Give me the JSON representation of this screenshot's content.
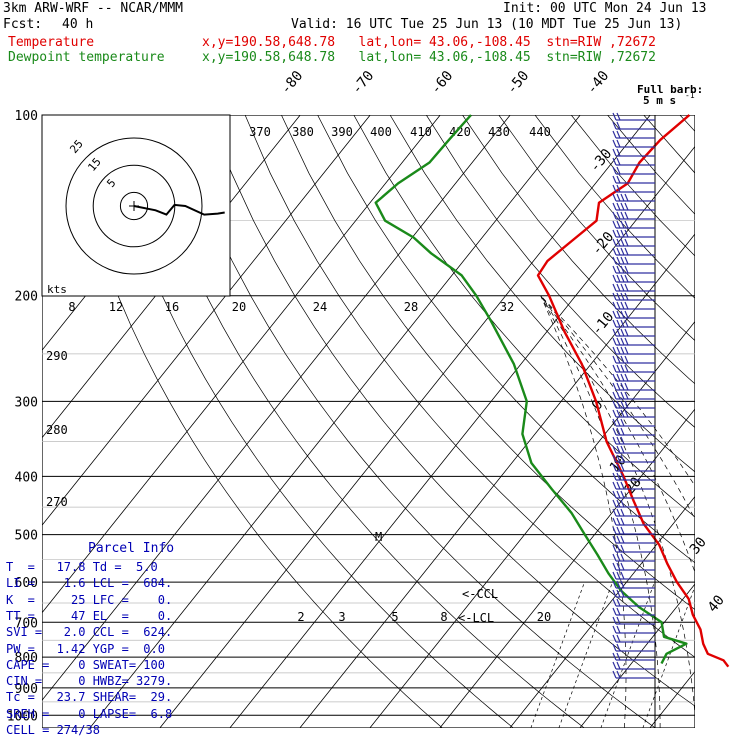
{
  "header": {
    "model": "3km ARW-WRF -- NCAR/MMM",
    "init": "Init: 00 UTC Mon 24 Jun 13",
    "fcst_label": "Fcst:",
    "fcst_value": "40 h",
    "valid": "Valid: 16 UTC Tue 25 Jun 13 (10 MDT Tue 25 Jun 13)",
    "temp_label": "Temperature",
    "temp_info": "x,y=190.58,648.78   lat,lon= 43.06,-108.45  stn=RIW ,72672",
    "dew_label": "Dewpoint temperature",
    "dew_info": "x,y=190.58,648.78   lat,lon= 43.06,-108.45  stn=RIW ,72672"
  },
  "colors": {
    "temperature": "#e00000",
    "dewpoint": "#1a8a1a",
    "text_blue": "#0000b4",
    "grid": "#000000"
  },
  "chart_data": {
    "type": "line",
    "title": "",
    "ylabel": "",
    "pressure_levels": [
      100,
      200,
      300,
      400,
      500,
      600,
      700,
      800,
      900,
      1000
    ],
    "isotherm_labels": [
      "-80",
      "-70",
      "-60",
      "-50",
      "-40",
      "-30",
      "-20",
      "-10",
      "0",
      "10",
      "20",
      "30",
      "40"
    ],
    "theta_labels_inset": [
      "370",
      "380",
      "390",
      "400",
      "410",
      "420",
      "430",
      "440"
    ],
    "theta_labels_left": [
      "290",
      "280",
      "270"
    ],
    "mixing_ratio_labels": [
      "2",
      "3",
      "5",
      "8",
      "20"
    ],
    "hodograph": {
      "units_label": "kts",
      "ring_labels": [
        "5",
        "15",
        "25"
      ],
      "axis_labels": [
        "8",
        "12",
        "16",
        "20",
        "24",
        "28",
        "32"
      ],
      "points": [
        [
          0,
          0
        ],
        [
          4,
          -0.8
        ],
        [
          6,
          -1.6
        ],
        [
          7.5,
          0.2
        ],
        [
          9.5,
          0
        ],
        [
          13,
          -1.6
        ],
        [
          15.5,
          -1.4
        ],
        [
          16.8,
          -1.2
        ]
      ]
    },
    "series": [
      {
        "name": "Temperature",
        "color": "#e00000",
        "points": [
          {
            "p": 830,
            "t": 14.2
          },
          {
            "p": 810,
            "t": 12.8
          },
          {
            "p": 790,
            "t": 9.8
          },
          {
            "p": 760,
            "t": 8.0
          },
          {
            "p": 720,
            "t": 6.0
          },
          {
            "p": 680,
            "t": 3.2
          },
          {
            "p": 640,
            "t": 0.8
          },
          {
            "p": 600,
            "t": -2.8
          },
          {
            "p": 560,
            "t": -6.2
          },
          {
            "p": 520,
            "t": -9.6
          },
          {
            "p": 480,
            "t": -14.2
          },
          {
            "p": 440,
            "t": -18.2
          },
          {
            "p": 400,
            "t": -22.5
          },
          {
            "p": 350,
            "t": -28.9
          },
          {
            "p": 300,
            "t": -35.0
          },
          {
            "p": 260,
            "t": -41.3
          },
          {
            "p": 230,
            "t": -47.4
          },
          {
            "p": 200,
            "t": -53.8
          },
          {
            "p": 185,
            "t": -57.7
          },
          {
            "p": 175,
            "t": -58.0
          },
          {
            "p": 160,
            "t": -56.6
          },
          {
            "p": 150,
            "t": -55.6
          },
          {
            "p": 140,
            "t": -57.3
          },
          {
            "p": 130,
            "t": -55.4
          },
          {
            "p": 120,
            "t": -56.1
          },
          {
            "p": 110,
            "t": -55.7
          },
          {
            "p": 100,
            "t": -54.4
          }
        ]
      },
      {
        "name": "Dewpoint temperature",
        "color": "#1a8a1a",
        "points": [
          {
            "p": 820,
            "t": 4.3
          },
          {
            "p": 790,
            "t": 3.9
          },
          {
            "p": 760,
            "t": 5.6
          },
          {
            "p": 740,
            "t": 1.6
          },
          {
            "p": 700,
            "t": -0.4
          },
          {
            "p": 660,
            "t": -5.4
          },
          {
            "p": 620,
            "t": -9.8
          },
          {
            "p": 580,
            "t": -13.6
          },
          {
            "p": 540,
            "t": -17.3
          },
          {
            "p": 500,
            "t": -21.4
          },
          {
            "p": 460,
            "t": -25.8
          },
          {
            "p": 420,
            "t": -31.3
          },
          {
            "p": 380,
            "t": -37.2
          },
          {
            "p": 340,
            "t": -41.8
          },
          {
            "p": 300,
            "t": -44.9
          },
          {
            "p": 260,
            "t": -51.0
          },
          {
            "p": 220,
            "t": -59.3
          },
          {
            "p": 200,
            "t": -64.2
          },
          {
            "p": 185,
            "t": -68.6
          },
          {
            "p": 170,
            "t": -75.5
          },
          {
            "p": 160,
            "t": -79.8
          },
          {
            "p": 150,
            "t": -85.8
          },
          {
            "p": 140,
            "t": -89.2
          },
          {
            "p": 130,
            "t": -88.2
          },
          {
            "p": 120,
            "t": -86.1
          },
          {
            "p": 110,
            "t": -85.9
          },
          {
            "p": 100,
            "t": -85.6
          }
        ]
      }
    ],
    "annotations": {
      "ccl": "<-CCL",
      "lcl": "<-LCL",
      "marker": "M"
    }
  },
  "wind_legend": {
    "title": "Full barb:",
    "value": "5 m s",
    "exponent": "-1"
  },
  "parcel_info": {
    "title": "Parcel Info",
    "rows": [
      "T  =   17.8 Td =  5.0",
      "LI =    1.6 LCL =  684.",
      "K  =     25 LFC =    0.",
      "TT =     47 EL  =    0.",
      "SVI =   2.0 CCL =  624.",
      "PW =   1.42 YGP =  0.0",
      "CAPE =    0 SWEAT= 100",
      "CIN =     0 HWBZ= 3279.",
      "Tc =   23.7 SHEAR=  29.",
      "SREH =    0 LAPSE=  6.8",
      "CELL = 274/38"
    ]
  }
}
